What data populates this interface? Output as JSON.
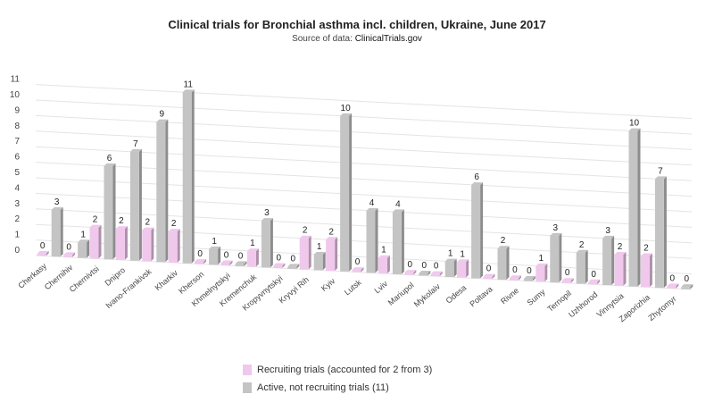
{
  "chart_data": {
    "type": "bar",
    "title": "Clinical trials for Bronchial asthma incl. children, Ukraine, June 2017",
    "subtitle_prefix": "Source of data:",
    "subtitle_source": "ClinicalTrials.gov",
    "ylim": [
      0,
      11
    ],
    "yticks": [
      "0",
      "1",
      "2",
      "3",
      "4",
      "5",
      "6",
      "7",
      "8",
      "9",
      "10",
      "11"
    ],
    "grid": true,
    "legend_position": "bottom",
    "categories": [
      "Cherkasy",
      "Chernihiv",
      "Chernivtsi",
      "Dnipro",
      "Ivano-Frankivsk",
      "Kharkiv",
      "Kherson",
      "Khmelnytskyi",
      "Kremenchuk",
      "Kropyvnytskyi",
      "Kryvyi Rih",
      "Kyiv",
      "Lutsk",
      "Lviv",
      "Mariupol",
      "Mykolaiv",
      "Odesa",
      "Poltava",
      "Rivne",
      "Sumy",
      "Ternopil",
      "Uzhhorod",
      "Vinnytsia",
      "Zaporizhia",
      "Zhytomyr"
    ],
    "series": [
      {
        "name": "Recruiting trials (accounted for 2 from 3)",
        "color": "#f0c8ec",
        "values": [
          0,
          0,
          2,
          2,
          2,
          2,
          0,
          0,
          1,
          0,
          2,
          2,
          0,
          1,
          0,
          0,
          1,
          0,
          0,
          1,
          0,
          0,
          2,
          2,
          0
        ]
      },
      {
        "name": "Active, not recruiting trials (11)",
        "color": "#c4c4c4",
        "values": [
          3,
          1,
          6,
          7,
          9,
          11,
          1,
          0,
          3,
          0,
          1,
          10,
          4,
          4,
          0,
          1,
          6,
          2,
          0,
          3,
          2,
          3,
          10,
          7,
          0
        ]
      }
    ]
  }
}
